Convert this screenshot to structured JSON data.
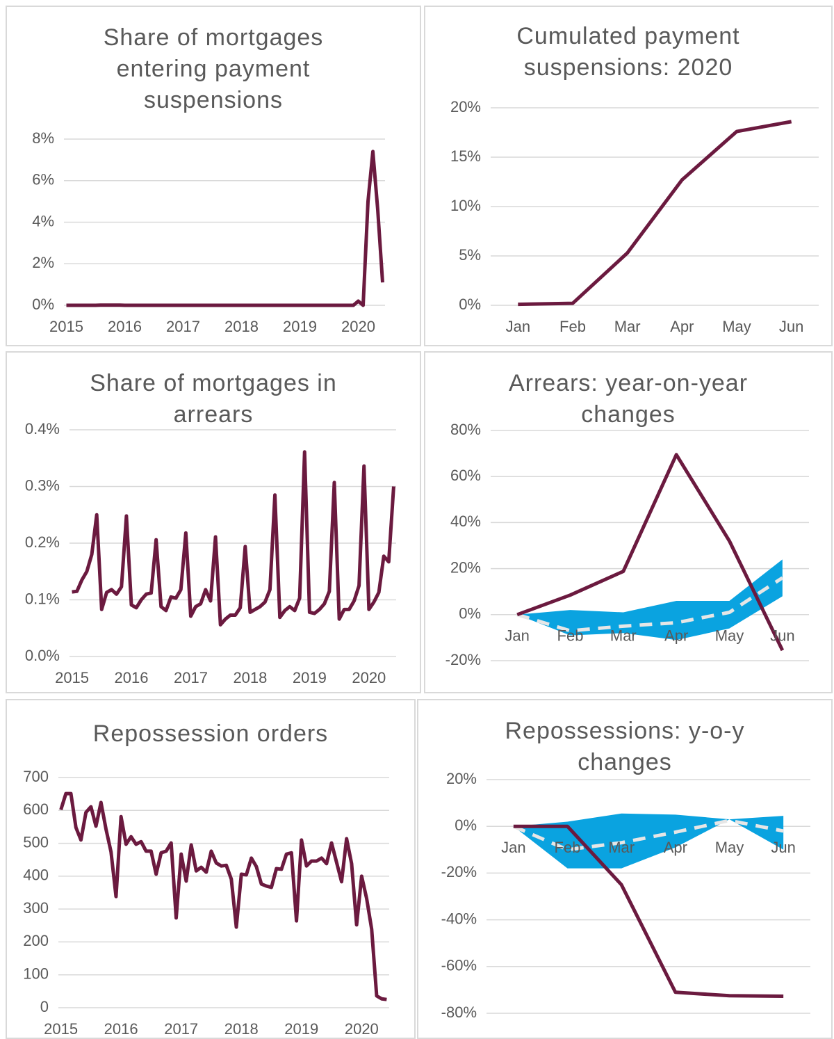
{
  "chart_data": [
    {
      "type": "line",
      "title": "Share of mortgages entering payment suspensions",
      "categories": [
        "2015",
        null,
        null,
        null,
        null,
        null,
        null,
        null,
        null,
        null,
        null,
        null,
        "2016",
        null,
        null,
        null,
        null,
        null,
        null,
        null,
        null,
        null,
        null,
        null,
        "2017",
        null,
        null,
        null,
        null,
        null,
        null,
        null,
        null,
        null,
        null,
        null,
        "2018",
        null,
        null,
        null,
        null,
        null,
        null,
        null,
        null,
        null,
        null,
        null,
        "2019",
        null,
        null,
        null,
        null,
        null,
        null,
        null,
        null,
        null,
        null,
        null,
        "2020",
        null,
        null,
        null,
        null,
        null
      ],
      "series": [
        {
          "color": "#6b1a3f",
          "values": [
            0,
            0,
            0,
            0,
            0,
            0,
            0,
            0.01,
            0.01,
            0.01,
            0.01,
            0.01,
            0,
            0,
            0,
            0,
            0,
            0,
            0,
            0,
            0,
            0,
            0,
            0,
            0,
            0,
            0,
            0,
            0,
            0,
            0,
            0,
            0,
            0,
            0,
            0,
            0,
            0,
            0,
            0,
            0,
            0,
            0,
            0,
            0,
            0,
            0,
            0,
            0,
            0,
            0,
            0,
            0,
            0,
            0,
            0,
            0,
            0,
            0,
            0,
            0.2,
            0,
            5.0,
            7.4,
            4.6,
            1.1
          ]
        }
      ],
      "ylim": [
        0,
        8
      ],
      "yticks": [
        {
          "value": 0,
          "label": "0%"
        },
        {
          "value": 2,
          "label": "2%"
        },
        {
          "value": 4,
          "label": "4%"
        },
        {
          "value": 6,
          "label": "6%"
        },
        {
          "value": 8,
          "label": "8%"
        }
      ],
      "grid": true
    },
    {
      "type": "line",
      "title": "Cumulated payment suspensions: 2020",
      "categories": [
        "Jan",
        "Feb",
        "Mar",
        "Apr",
        "May",
        "Jun"
      ],
      "series": [
        {
          "color": "#6b1a3f",
          "values": [
            0.1,
            0.2,
            5.3,
            12.7,
            17.6,
            18.6
          ]
        }
      ],
      "ylim": [
        0,
        20
      ],
      "yticks": [
        {
          "value": 0,
          "label": "0%"
        },
        {
          "value": 5,
          "label": "5%"
        },
        {
          "value": 10,
          "label": "10%"
        },
        {
          "value": 15,
          "label": "15%"
        },
        {
          "value": 20,
          "label": "20%"
        }
      ],
      "grid": true
    },
    {
      "type": "line",
      "title": "Share of mortgages in arrears",
      "categories": [
        "2015",
        null,
        null,
        null,
        null,
        null,
        null,
        null,
        null,
        null,
        null,
        null,
        "2016",
        null,
        null,
        null,
        null,
        null,
        null,
        null,
        null,
        null,
        null,
        null,
        "2017",
        null,
        null,
        null,
        null,
        null,
        null,
        null,
        null,
        null,
        null,
        null,
        "2018",
        null,
        null,
        null,
        null,
        null,
        null,
        null,
        null,
        null,
        null,
        null,
        "2019",
        null,
        null,
        null,
        null,
        null,
        null,
        null,
        null,
        null,
        null,
        null,
        "2020",
        null,
        null,
        null,
        null,
        null
      ],
      "series": [
        {
          "color": "#6b1a3f",
          "values": [
            0.114,
            0.115,
            0.135,
            0.15,
            0.18,
            0.25,
            0.083,
            0.113,
            0.118,
            0.11,
            0.123,
            0.248,
            0.091,
            0.086,
            0.1,
            0.11,
            0.112,
            0.206,
            0.088,
            0.081,
            0.105,
            0.103,
            0.118,
            0.218,
            0.071,
            0.088,
            0.093,
            0.118,
            0.098,
            0.211,
            0.056,
            0.066,
            0.073,
            0.073,
            0.086,
            0.194,
            0.078,
            0.083,
            0.088,
            0.096,
            0.118,
            0.285,
            0.069,
            0.081,
            0.088,
            0.081,
            0.103,
            0.361,
            0.078,
            0.076,
            0.083,
            0.093,
            0.115,
            0.307,
            0.066,
            0.083,
            0.083,
            0.098,
            0.125,
            0.336,
            0.083,
            0.096,
            0.113,
            0.177,
            0.167,
            0.3
          ]
        }
      ],
      "ylim": [
        0,
        0.4
      ],
      "yticks": [
        {
          "value": 0,
          "label": "0.0%"
        },
        {
          "value": 0.1,
          "label": "0.1%"
        },
        {
          "value": 0.2,
          "label": "0.2%"
        },
        {
          "value": 0.3,
          "label": "0.3%"
        },
        {
          "value": 0.4,
          "label": "0.4%"
        }
      ],
      "grid": true
    },
    {
      "type": "line",
      "title": "Arrears: year-on-year changes",
      "categories": [
        "Jan",
        "Feb",
        "Mar",
        "Apr",
        "May",
        "Jun"
      ],
      "series": [
        {
          "kind": "band",
          "color": "#0aa3e0",
          "values": [
            0,
            2,
            1,
            6,
            6,
            24
          ],
          "lower": [
            0,
            -9,
            -8,
            -11,
            -6,
            8
          ]
        },
        {
          "color": "#e6e6e6",
          "dash": true,
          "values": [
            0,
            -7,
            -5,
            -3.5,
            1,
            16
          ]
        },
        {
          "color": "#6b1a3f",
          "values": [
            0,
            8.5,
            18.8,
            69.5,
            32,
            -15.5
          ]
        }
      ],
      "ylim": [
        -20,
        80
      ],
      "yticks": [
        {
          "value": -20,
          "label": "-20%"
        },
        {
          "value": 0,
          "label": "0%"
        },
        {
          "value": 20,
          "label": "20%"
        },
        {
          "value": 40,
          "label": "40%"
        },
        {
          "value": 60,
          "label": "60%"
        },
        {
          "value": 80,
          "label": "80%"
        }
      ],
      "grid": true
    },
    {
      "type": "line",
      "title": "Repossession orders",
      "categories": [
        "2015",
        null,
        null,
        null,
        null,
        null,
        null,
        null,
        null,
        null,
        null,
        null,
        "2016",
        null,
        null,
        null,
        null,
        null,
        null,
        null,
        null,
        null,
        null,
        null,
        "2017",
        null,
        null,
        null,
        null,
        null,
        null,
        null,
        null,
        null,
        null,
        null,
        "2018",
        null,
        null,
        null,
        null,
        null,
        null,
        null,
        null,
        null,
        null,
        null,
        "2019",
        null,
        null,
        null,
        null,
        null,
        null,
        null,
        null,
        null,
        null,
        null,
        "2020",
        null,
        null,
        null,
        null,
        null
      ],
      "series": [
        {
          "color": "#6b1a3f",
          "values": [
            602,
            651,
            651,
            548,
            510,
            594,
            611,
            552,
            624,
            543,
            474,
            338,
            581,
            497,
            520,
            497,
            505,
            476,
            476,
            406,
            471,
            476,
            501,
            273,
            467,
            385,
            495,
            416,
            427,
            412,
            476,
            440,
            431,
            433,
            391,
            245,
            406,
            404,
            455,
            429,
            376,
            370,
            366,
            423,
            421,
            467,
            471,
            264,
            510,
            431,
            446,
            446,
            455,
            438,
            501,
            442,
            383,
            514,
            438,
            252,
            400,
            332,
            239,
            36,
            27,
            25
          ]
        }
      ],
      "ylim": [
        0,
        700
      ],
      "yticks": [
        0,
        100,
        200,
        300,
        400,
        500,
        600,
        700
      ],
      "grid": true
    },
    {
      "type": "line",
      "title": "Repossessions: y-o-y changes",
      "categories": [
        "Jan",
        "Feb",
        "Mar",
        "Apr",
        "May",
        "Jun"
      ],
      "series": [
        {
          "kind": "band",
          "color": "#0aa3e0",
          "values": [
            0,
            2,
            5.5,
            5,
            3,
            4.5
          ],
          "lower": [
            0,
            -18,
            -18,
            -9,
            3,
            -10
          ]
        },
        {
          "color": "#e6e6e6",
          "dash": true,
          "values": [
            0,
            -10,
            -7,
            -2.5,
            2.5,
            -2
          ]
        },
        {
          "color": "#6b1a3f",
          "values": [
            0,
            0,
            -25,
            -71,
            -72.5,
            -72.7
          ]
        }
      ],
      "ylim": [
        -80,
        20
      ],
      "yticks": [
        {
          "value": -80,
          "label": "-80%"
        },
        {
          "value": -60,
          "label": "-60%"
        },
        {
          "value": -40,
          "label": "-40%"
        },
        {
          "value": -20,
          "label": "-20%"
        },
        {
          "value": 0,
          "label": "0%"
        },
        {
          "value": 20,
          "label": "20%"
        }
      ],
      "grid": true
    }
  ]
}
